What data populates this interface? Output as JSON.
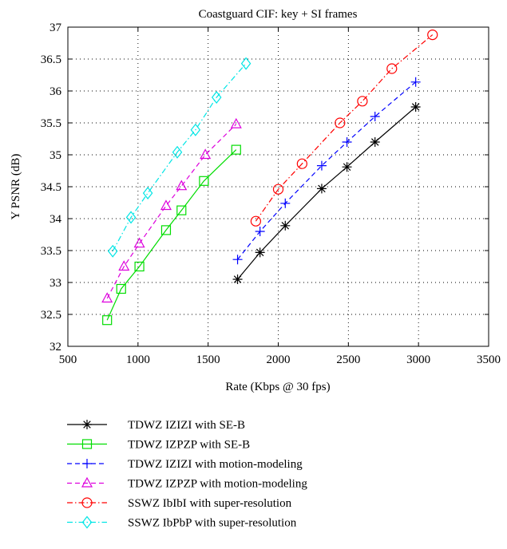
{
  "chart_data": {
    "type": "line",
    "title": "Coastguard CIF: key + SI frames",
    "xlabel": "Rate (Kbps @ 30 fps)",
    "ylabel": "Y PSNR (dB)",
    "xlim": [
      500,
      3500
    ],
    "ylim": [
      32,
      37
    ],
    "xticks": [
      "500",
      "1000",
      "1500",
      "2000",
      "2500",
      "3000",
      "3500"
    ],
    "yticks": [
      "32",
      "32.5",
      "33",
      "33.5",
      "34",
      "34.5",
      "35",
      "35.5",
      "36",
      "36.5",
      "37"
    ],
    "grid": true,
    "legend_position": "bottom",
    "series": [
      {
        "name": "TDWZ IZIZI with SE-B",
        "color": "#000000",
        "marker": "asterisk",
        "dash": "solid",
        "points": [
          [
            1710,
            33.05
          ],
          [
            1870,
            33.47
          ],
          [
            2050,
            33.89
          ],
          [
            2310,
            34.47
          ],
          [
            2490,
            34.81
          ],
          [
            2690,
            35.2
          ],
          [
            2980,
            35.75
          ]
        ]
      },
      {
        "name": "TDWZ IZPZP with SE-B",
        "color": "#00dd00",
        "marker": "square",
        "dash": "solid",
        "points": [
          [
            780,
            32.41
          ],
          [
            880,
            32.9
          ],
          [
            1010,
            33.25
          ],
          [
            1200,
            33.82
          ],
          [
            1310,
            34.13
          ],
          [
            1470,
            34.59
          ],
          [
            1700,
            35.08
          ]
        ]
      },
      {
        "name": "TDWZ IZIZI with motion-modeling",
        "color": "#0000ff",
        "marker": "plus",
        "dash": "dashed",
        "points": [
          [
            1710,
            33.36
          ],
          [
            1870,
            33.8
          ],
          [
            2050,
            34.24
          ],
          [
            2310,
            34.83
          ],
          [
            2490,
            35.2
          ],
          [
            2690,
            35.6
          ],
          [
            2980,
            36.14
          ]
        ]
      },
      {
        "name": "TDWZ IZPZP with motion-modeling",
        "color": "#dd00dd",
        "marker": "triangle",
        "dash": "dashed",
        "points": [
          [
            780,
            32.75
          ],
          [
            900,
            33.25
          ],
          [
            1010,
            33.61
          ],
          [
            1200,
            34.2
          ],
          [
            1310,
            34.51
          ],
          [
            1480,
            35.0
          ],
          [
            1700,
            35.48
          ]
        ]
      },
      {
        "name": "SSWZ IbIbI with super-resolution",
        "color": "#ff0000",
        "marker": "circle",
        "dash": "dashdot",
        "points": [
          [
            1840,
            33.96
          ],
          [
            2000,
            34.46
          ],
          [
            2170,
            34.86
          ],
          [
            2440,
            35.5
          ],
          [
            2600,
            35.84
          ],
          [
            2810,
            36.35
          ],
          [
            3100,
            36.88
          ]
        ]
      },
      {
        "name": "SSWZ IbPbP with super-resolution",
        "color": "#00e5e5",
        "marker": "diamond",
        "dash": "dashdot",
        "points": [
          [
            820,
            33.49
          ],
          [
            950,
            34.02
          ],
          [
            1070,
            34.4
          ],
          [
            1280,
            35.04
          ],
          [
            1410,
            35.39
          ],
          [
            1560,
            35.9
          ],
          [
            1770,
            36.43
          ]
        ]
      }
    ]
  }
}
